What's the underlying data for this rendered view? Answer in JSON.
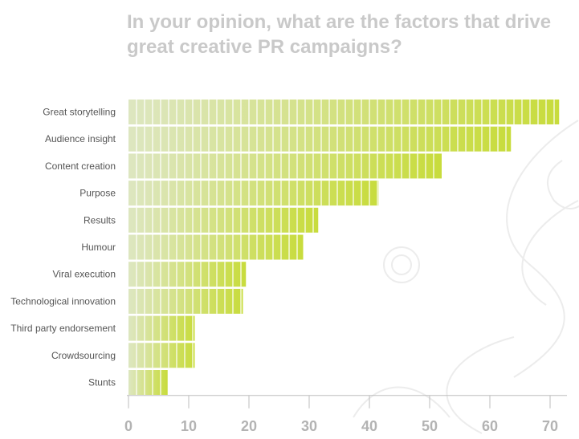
{
  "chart_data": {
    "type": "bar",
    "orientation": "horizontal",
    "title": "In your opinion, what are the factors that drive great creative PR campaigns?",
    "categories": [
      "Great storytelling",
      "Audience insight",
      "Content creation",
      "Purpose",
      "Results",
      "Humour",
      "Viral execution",
      "Technological innovation",
      "Third party endorsement",
      "Crowdsourcing",
      "Stunts"
    ],
    "values": [
      71.5,
      63.5,
      52,
      41.5,
      31.5,
      29,
      19.5,
      19,
      11,
      11,
      6.5
    ],
    "xlim": [
      0,
      72
    ],
    "xticks": [
      0,
      10,
      20,
      30,
      40,
      50,
      60,
      70
    ],
    "grid": false,
    "colors": {
      "bar_light": "#d9e4b8",
      "bar_dark": "#c8dc3c",
      "segment_line": "#ffffff",
      "axis": "#bdbdbd"
    }
  }
}
